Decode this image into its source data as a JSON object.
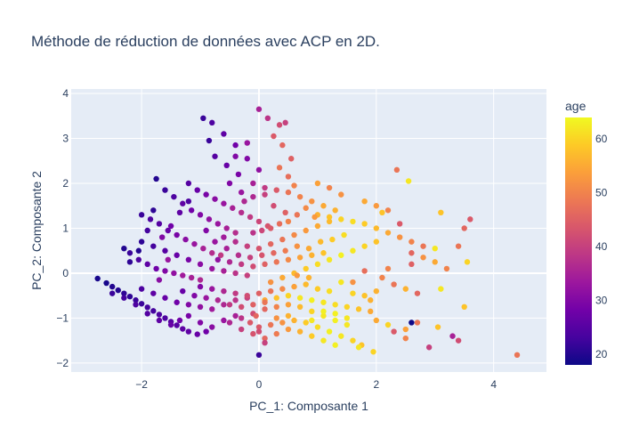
{
  "chart_data": {
    "type": "scatter",
    "title": "Méthode de réduction de données avec ACP en 2D.",
    "xlabel": "PC_1: Composante 1",
    "ylabel": "PC_2: Composante 2",
    "xlim": [
      -3.2,
      4.9
    ],
    "ylim": [
      -2.2,
      4.1
    ],
    "xticks": [
      -2,
      0,
      2,
      4
    ],
    "xtick_labels": [
      "−2",
      "0",
      "2",
      "4"
    ],
    "yticks": [
      -2,
      -1,
      0,
      1,
      2,
      3,
      4
    ],
    "ytick_labels": [
      "−2",
      "−1",
      "0",
      "1",
      "2",
      "3",
      "4"
    ],
    "grid": true,
    "background_color": "#E5ECF6",
    "colorbar": {
      "title": "age",
      "range": [
        18,
        64
      ],
      "ticks": [
        20,
        30,
        40,
        50,
        60
      ],
      "colorscale": [
        "#0d0887",
        "#46039f",
        "#7201a8",
        "#9c179e",
        "#bd3786",
        "#d8576b",
        "#ed7953",
        "#fb9f3a",
        "#fdca26",
        "#f0f921"
      ]
    },
    "points": [
      [
        -2.75,
        -0.12,
        19
      ],
      [
        -2.6,
        -0.22,
        19
      ],
      [
        -2.5,
        -0.3,
        20
      ],
      [
        -2.4,
        -0.38,
        20
      ],
      [
        -2.3,
        -0.45,
        21
      ],
      [
        -2.2,
        -0.52,
        21
      ],
      [
        -2.1,
        -0.6,
        22
      ],
      [
        -2.0,
        -0.68,
        22
      ],
      [
        -1.9,
        -0.76,
        23
      ],
      [
        -1.8,
        -0.84,
        23
      ],
      [
        -1.7,
        -0.92,
        24
      ],
      [
        -1.6,
        -1.0,
        24
      ],
      [
        -1.5,
        -1.08,
        25
      ],
      [
        -1.4,
        -1.16,
        25
      ],
      [
        -1.3,
        -1.24,
        26
      ],
      [
        -1.2,
        -1.3,
        26
      ],
      [
        -1.05,
        -1.36,
        27
      ],
      [
        -0.9,
        -1.3,
        28
      ],
      [
        -2.5,
        -0.45,
        22
      ],
      [
        -2.3,
        -0.55,
        23
      ],
      [
        -2.1,
        -0.7,
        24
      ],
      [
        -1.9,
        -0.9,
        25
      ],
      [
        -1.7,
        -1.05,
        26
      ],
      [
        -1.5,
        -1.15,
        27
      ],
      [
        -1.35,
        -1.05,
        28
      ],
      [
        -1.2,
        -0.95,
        29
      ],
      [
        -1.0,
        -1.1,
        30
      ],
      [
        -0.8,
        -1.2,
        31
      ],
      [
        -0.6,
        -1.05,
        33
      ],
      [
        -0.4,
        -0.95,
        35
      ],
      [
        -2.0,
        -0.35,
        24
      ],
      [
        -1.8,
        -0.45,
        26
      ],
      [
        -1.6,
        -0.55,
        27
      ],
      [
        -1.4,
        -0.65,
        28
      ],
      [
        -1.2,
        -0.7,
        30
      ],
      [
        -1.0,
        -0.75,
        32
      ],
      [
        -0.8,
        -0.8,
        34
      ],
      [
        -0.6,
        -0.7,
        36
      ],
      [
        -0.4,
        -0.6,
        38
      ],
      [
        -0.2,
        -0.55,
        40
      ],
      [
        -2.3,
        0.55,
        20
      ],
      [
        -2.2,
        0.45,
        22
      ],
      [
        -2.05,
        0.3,
        24
      ],
      [
        -1.9,
        0.2,
        26
      ],
      [
        -1.75,
        0.1,
        28
      ],
      [
        -1.6,
        0.05,
        30
      ],
      [
        -1.45,
        0.0,
        32
      ],
      [
        -1.3,
        -0.05,
        34
      ],
      [
        -1.15,
        -0.1,
        35
      ],
      [
        -1.0,
        -0.15,
        36
      ],
      [
        -2.0,
        0.7,
        21
      ],
      [
        -1.8,
        0.6,
        23
      ],
      [
        -1.6,
        0.5,
        25
      ],
      [
        -1.4,
        0.4,
        27
      ],
      [
        -1.2,
        0.3,
        29
      ],
      [
        -1.0,
        0.2,
        31
      ],
      [
        -0.8,
        0.1,
        33
      ],
      [
        -0.6,
        0.05,
        35
      ],
      [
        -0.4,
        0.0,
        38
      ],
      [
        -0.2,
        -0.05,
        40
      ],
      [
        -2.0,
        1.3,
        22
      ],
      [
        -1.85,
        1.2,
        24
      ],
      [
        -1.7,
        1.1,
        25
      ],
      [
        -1.55,
        0.95,
        27
      ],
      [
        -1.4,
        0.85,
        29
      ],
      [
        -1.25,
        0.75,
        31
      ],
      [
        -1.1,
        0.65,
        33
      ],
      [
        -0.95,
        0.55,
        35
      ],
      [
        -0.8,
        0.45,
        37
      ],
      [
        -0.65,
        0.4,
        39
      ],
      [
        -1.75,
        2.1,
        20
      ],
      [
        -1.6,
        1.85,
        22
      ],
      [
        -1.45,
        1.7,
        24
      ],
      [
        -1.3,
        1.55,
        26
      ],
      [
        -1.15,
        1.4,
        28
      ],
      [
        -1.0,
        1.3,
        30
      ],
      [
        -0.85,
        1.2,
        32
      ],
      [
        -0.7,
        1.1,
        33
      ],
      [
        -0.55,
        1.0,
        35
      ],
      [
        -0.4,
        0.9,
        37
      ],
      [
        -1.2,
        2.0,
        25
      ],
      [
        -1.05,
        1.85,
        27
      ],
      [
        -0.9,
        1.75,
        29
      ],
      [
        -0.75,
        1.65,
        31
      ],
      [
        -0.6,
        1.55,
        33
      ],
      [
        -0.45,
        1.45,
        35
      ],
      [
        -0.3,
        1.35,
        37
      ],
      [
        -0.15,
        1.25,
        39
      ],
      [
        0.0,
        1.15,
        41
      ],
      [
        0.15,
        1.05,
        43
      ],
      [
        -0.95,
        3.45,
        22
      ],
      [
        -0.8,
        3.35,
        24
      ],
      [
        -0.6,
        3.1,
        26
      ],
      [
        -0.4,
        2.85,
        28
      ],
      [
        -0.2,
        2.55,
        30
      ],
      [
        0.0,
        2.3,
        32
      ],
      [
        -0.85,
        2.95,
        22
      ],
      [
        -0.75,
        2.6,
        25
      ],
      [
        -0.55,
        2.4,
        27
      ],
      [
        -0.35,
        2.2,
        29
      ],
      [
        0.0,
        3.65,
        35
      ],
      [
        0.15,
        3.45,
        38
      ],
      [
        0.35,
        3.3,
        42
      ],
      [
        0.45,
        3.35,
        40
      ],
      [
        0.25,
        3.05,
        44
      ],
      [
        0.4,
        2.85,
        46
      ],
      [
        0.55,
        2.55,
        45
      ],
      [
        0.35,
        2.35,
        48
      ],
      [
        0.5,
        2.15,
        47
      ],
      [
        0.6,
        1.95,
        50
      ],
      [
        -0.5,
        2.0,
        30
      ],
      [
        -0.3,
        1.8,
        33
      ],
      [
        -0.1,
        1.7,
        36
      ],
      [
        0.1,
        1.75,
        40
      ],
      [
        0.3,
        1.85,
        44
      ],
      [
        0.5,
        1.8,
        48
      ],
      [
        0.7,
        1.7,
        50
      ],
      [
        0.9,
        1.6,
        52
      ],
      [
        1.1,
        1.5,
        55
      ],
      [
        1.3,
        1.4,
        56
      ],
      [
        -0.6,
        0.8,
        34
      ],
      [
        -0.4,
        0.7,
        37
      ],
      [
        -0.2,
        0.6,
        40
      ],
      [
        0.0,
        0.55,
        43
      ],
      [
        0.2,
        0.65,
        46
      ],
      [
        0.4,
        0.75,
        48
      ],
      [
        0.6,
        0.85,
        51
      ],
      [
        0.8,
        0.95,
        53
      ],
      [
        1.0,
        1.05,
        55
      ],
      [
        1.2,
        1.15,
        57
      ],
      [
        -0.7,
        0.3,
        32
      ],
      [
        -0.5,
        0.25,
        36
      ],
      [
        -0.3,
        0.2,
        39
      ],
      [
        -0.1,
        0.15,
        42
      ],
      [
        0.1,
        0.2,
        45
      ],
      [
        0.3,
        0.25,
        48
      ],
      [
        0.5,
        0.3,
        51
      ],
      [
        0.7,
        0.35,
        54
      ],
      [
        0.9,
        0.4,
        56
      ],
      [
        1.1,
        0.45,
        58
      ],
      [
        -1.0,
        -0.3,
        30
      ],
      [
        -0.8,
        -0.35,
        33
      ],
      [
        -0.6,
        -0.4,
        36
      ],
      [
        -0.4,
        -0.45,
        39
      ],
      [
        -0.2,
        -0.5,
        42
      ],
      [
        0.0,
        -0.45,
        45
      ],
      [
        0.2,
        -0.4,
        48
      ],
      [
        0.4,
        -0.35,
        51
      ],
      [
        0.6,
        -0.3,
        54
      ],
      [
        0.8,
        -0.25,
        57
      ],
      [
        -0.3,
        -1.0,
        38
      ],
      [
        -0.1,
        -0.9,
        42
      ],
      [
        0.1,
        -0.8,
        46
      ],
      [
        0.3,
        -0.75,
        50
      ],
      [
        0.5,
        -0.7,
        54
      ],
      [
        0.7,
        -0.75,
        57
      ],
      [
        0.9,
        -0.85,
        60
      ],
      [
        1.1,
        -0.95,
        62
      ],
      [
        1.3,
        -1.05,
        63
      ],
      [
        1.5,
        -1.15,
        62
      ],
      [
        0.0,
        -1.2,
        44
      ],
      [
        0.2,
        -1.15,
        48
      ],
      [
        0.4,
        -1.1,
        52
      ],
      [
        0.6,
        -1.05,
        56
      ],
      [
        0.8,
        -1.1,
        59
      ],
      [
        1.0,
        -1.2,
        61
      ],
      [
        1.2,
        -1.3,
        63
      ],
      [
        1.4,
        -1.4,
        62
      ],
      [
        1.6,
        -1.5,
        60
      ],
      [
        1.75,
        -1.6,
        58
      ],
      [
        -0.5,
        -1.1,
        36
      ],
      [
        -0.3,
        -1.25,
        40
      ],
      [
        -0.1,
        -1.35,
        43
      ],
      [
        0.1,
        -1.45,
        46
      ],
      [
        0.3,
        -1.35,
        49
      ],
      [
        0.5,
        -1.25,
        53
      ],
      [
        0.7,
        -1.3,
        56
      ],
      [
        0.9,
        -1.4,
        59
      ],
      [
        1.1,
        -1.5,
        62
      ],
      [
        1.3,
        -1.6,
        63
      ],
      [
        0.2,
        -0.2,
        52
      ],
      [
        0.4,
        -0.1,
        55
      ],
      [
        0.6,
        0.0,
        57
      ],
      [
        0.8,
        0.1,
        59
      ],
      [
        1.0,
        0.2,
        61
      ],
      [
        1.2,
        0.3,
        62
      ],
      [
        1.4,
        0.4,
        63
      ],
      [
        1.6,
        0.5,
        62
      ],
      [
        1.8,
        0.6,
        60
      ],
      [
        2.0,
        0.7,
        58
      ],
      [
        0.1,
        -0.6,
        55
      ],
      [
        0.3,
        -0.55,
        58
      ],
      [
        0.5,
        -0.5,
        60
      ],
      [
        0.7,
        -0.55,
        62
      ],
      [
        0.9,
        -0.6,
        63
      ],
      [
        1.1,
        -0.65,
        62
      ],
      [
        1.3,
        -0.7,
        61
      ],
      [
        1.5,
        -0.75,
        60
      ],
      [
        1.7,
        -0.8,
        58
      ],
      [
        1.9,
        -0.85,
        55
      ],
      [
        1.0,
        1.3,
        56
      ],
      [
        1.2,
        1.25,
        58
      ],
      [
        1.4,
        1.2,
        60
      ],
      [
        1.6,
        1.15,
        61
      ],
      [
        1.8,
        1.1,
        59
      ],
      [
        2.0,
        1.0,
        57
      ],
      [
        2.2,
        0.9,
        55
      ],
      [
        2.4,
        0.8,
        52
      ],
      [
        2.6,
        0.7,
        50
      ],
      [
        2.8,
        0.6,
        48
      ],
      [
        1.4,
        1.75,
        52
      ],
      [
        1.2,
        1.9,
        50
      ],
      [
        1.0,
        2.0,
        54
      ],
      [
        1.8,
        1.6,
        55
      ],
      [
        2.0,
        1.5,
        53
      ],
      [
        2.2,
        1.4,
        50
      ],
      [
        2.35,
        2.3,
        48
      ],
      [
        2.55,
        2.05,
        62
      ],
      [
        2.1,
        1.35,
        58
      ],
      [
        2.4,
        1.1,
        44
      ],
      [
        2.6,
        0.45,
        46
      ],
      [
        2.8,
        0.35,
        52
      ],
      [
        3.0,
        0.25,
        55
      ],
      [
        3.2,
        0.1,
        50
      ],
      [
        3.4,
        0.6,
        48
      ],
      [
        3.5,
        1.0,
        46
      ],
      [
        3.6,
        1.2,
        44
      ],
      [
        3.55,
        0.25,
        60
      ],
      [
        3.1,
        1.35,
        58
      ],
      [
        3.0,
        0.55,
        62
      ],
      [
        2.1,
        -0.1,
        50
      ],
      [
        2.3,
        -0.25,
        48
      ],
      [
        2.5,
        -0.35,
        56
      ],
      [
        2.7,
        -0.45,
        46
      ],
      [
        3.1,
        -0.35,
        62
      ],
      [
        3.05,
        -1.2,
        58
      ],
      [
        2.9,
        -1.65,
        40
      ],
      [
        3.3,
        -1.4,
        35
      ],
      [
        3.4,
        -1.5,
        42
      ],
      [
        3.5,
        -0.75,
        58
      ],
      [
        2.0,
        -1.05,
        55
      ],
      [
        2.2,
        -1.15,
        60
      ],
      [
        2.3,
        -1.3,
        44
      ],
      [
        2.5,
        -1.25,
        54
      ],
      [
        2.7,
        -1.1,
        48
      ],
      [
        2.5,
        -1.45,
        50
      ],
      [
        2.6,
        -1.1,
        15
      ],
      [
        1.9,
        -0.6,
        56
      ],
      [
        1.7,
        -1.65,
        62
      ],
      [
        1.95,
        -1.75,
        60
      ],
      [
        4.4,
        -1.82,
        48
      ],
      [
        0.0,
        -1.82,
        22
      ],
      [
        0.1,
        -1.55,
        40
      ],
      [
        0.0,
        -1.3,
        42
      ],
      [
        -0.15,
        -1.1,
        44
      ],
      [
        -0.05,
        -0.95,
        46
      ],
      [
        2.6,
        0.2,
        45
      ],
      [
        2.2,
        0.1,
        50
      ],
      [
        1.8,
        0.05,
        47
      ],
      [
        1.6,
        -0.2,
        52
      ],
      [
        -1.2,
        1.6,
        24
      ],
      [
        -1.35,
        1.35,
        26
      ],
      [
        -1.5,
        1.05,
        28
      ],
      [
        -1.65,
        0.8,
        30
      ],
      [
        -1.8,
        1.4,
        21
      ],
      [
        -1.9,
        0.95,
        23
      ],
      [
        -2.05,
        0.5,
        20
      ],
      [
        -2.2,
        0.25,
        21
      ],
      [
        -1.55,
        0.3,
        33
      ],
      [
        -1.7,
        -0.15,
        31
      ],
      [
        -0.4,
        2.6,
        30
      ],
      [
        -0.2,
        2.9,
        33
      ],
      [
        -0.1,
        2.0,
        35
      ],
      [
        0.1,
        1.9,
        39
      ],
      [
        -0.25,
        1.6,
        36
      ],
      [
        0.25,
        1.5,
        42
      ],
      [
        0.45,
        1.35,
        45
      ],
      [
        0.65,
        1.3,
        48
      ],
      [
        0.8,
        1.45,
        51
      ],
      [
        0.95,
        1.25,
        53
      ],
      [
        -0.1,
        0.9,
        38
      ],
      [
        0.05,
        0.95,
        41
      ],
      [
        0.2,
        1.0,
        44
      ],
      [
        0.35,
        1.1,
        47
      ],
      [
        0.5,
        1.15,
        50
      ],
      [
        0.65,
        0.6,
        52
      ],
      [
        0.85,
        0.55,
        55
      ],
      [
        1.05,
        0.7,
        57
      ],
      [
        1.25,
        0.75,
        59
      ],
      [
        1.45,
        0.85,
        61
      ],
      [
        -0.9,
        0.95,
        30
      ],
      [
        -0.75,
        0.7,
        33
      ],
      [
        -0.55,
        0.55,
        35
      ],
      [
        -0.35,
        0.4,
        37
      ],
      [
        -0.15,
        0.35,
        40
      ],
      [
        0.05,
        0.4,
        43
      ],
      [
        0.25,
        0.45,
        46
      ],
      [
        0.45,
        0.5,
        49
      ],
      [
        0.65,
        -0.05,
        53
      ],
      [
        0.85,
        -0.1,
        56
      ],
      [
        -1.3,
        -0.4,
        27
      ],
      [
        -1.1,
        -0.5,
        30
      ],
      [
        -0.9,
        -0.55,
        33
      ],
      [
        -0.7,
        -0.6,
        36
      ],
      [
        -0.5,
        -0.7,
        39
      ],
      [
        -0.3,
        -0.75,
        42
      ],
      [
        -0.1,
        -0.7,
        45
      ],
      [
        0.1,
        -0.65,
        48
      ],
      [
        0.3,
        -1.0,
        52
      ],
      [
        0.5,
        -0.95,
        56
      ],
      [
        1.0,
        -0.35,
        59
      ],
      [
        1.2,
        -0.4,
        61
      ],
      [
        1.4,
        -0.2,
        62
      ],
      [
        1.6,
        -0.45,
        60
      ],
      [
        1.8,
        -0.5,
        58
      ],
      [
        2.0,
        -0.4,
        56
      ],
      [
        1.1,
        -0.85,
        63
      ],
      [
        1.3,
        -0.9,
        63
      ],
      [
        1.5,
        -1.0,
        62
      ],
      [
        0.9,
        -1.05,
        62
      ]
    ]
  }
}
